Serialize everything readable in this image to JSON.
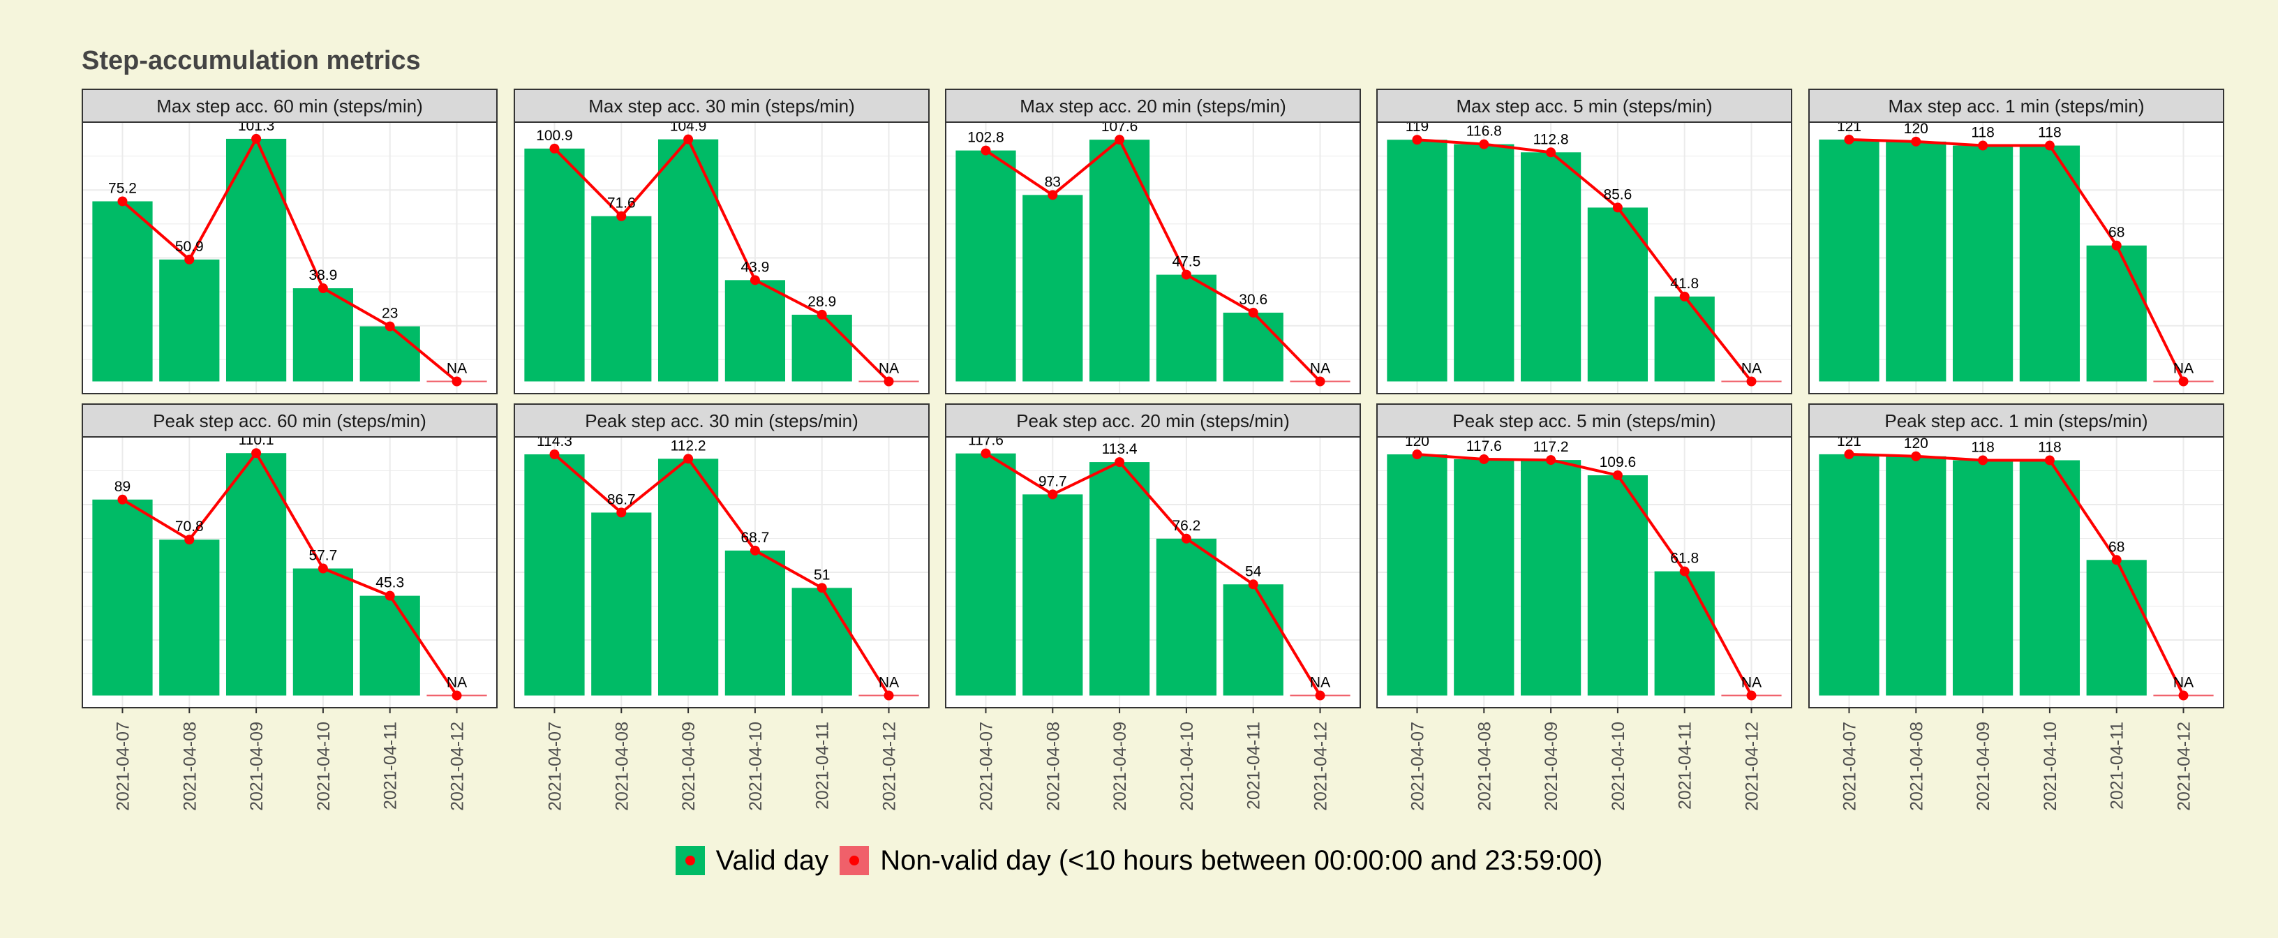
{
  "page": {
    "title": "Step-accumulation metrics"
  },
  "colors": {
    "valid": "#00bb66",
    "non_valid": "#f0606a",
    "line": "#ff0000",
    "strip_bg": "#d9d9d9",
    "grid": "#ebebeb"
  },
  "chart_data": {
    "type": "bar",
    "facet_layout": "2 rows x 5 columns",
    "categories": [
      "2021-04-07",
      "2021-04-08",
      "2021-04-09",
      "2021-04-10",
      "2021-04-11",
      "2021-04-12"
    ],
    "legend": {
      "position": "bottom",
      "entries": [
        {
          "label": "Valid day",
          "color": "#00bb66"
        },
        {
          "label": "Non-valid day (<10 hours between 00:00:00 and 23:59:00)",
          "color": "#f0606a"
        }
      ]
    },
    "panels": [
      {
        "title": "Max step acc. 60 min (steps/min)",
        "values": [
          75.2,
          50.9,
          101.3,
          38.9,
          23,
          null
        ],
        "ylim": [
          0,
          106
        ],
        "validity": [
          "valid",
          "valid",
          "valid",
          "valid",
          "valid",
          "non-valid"
        ]
      },
      {
        "title": "Max step acc. 30 min (steps/min)",
        "values": [
          100.9,
          71.6,
          104.9,
          43.9,
          28.9,
          null
        ],
        "ylim": [
          0,
          110
        ],
        "validity": [
          "valid",
          "valid",
          "valid",
          "valid",
          "valid",
          "non-valid"
        ]
      },
      {
        "title": "Max step acc. 20 min (steps/min)",
        "values": [
          102.8,
          83,
          107.6,
          47.5,
          30.6,
          null
        ],
        "ylim": [
          0,
          113
        ],
        "validity": [
          "valid",
          "valid",
          "valid",
          "valid",
          "valid",
          "non-valid"
        ]
      },
      {
        "title": "Max step acc. 5 min (steps/min)",
        "values": [
          119,
          116.8,
          112.8,
          85.6,
          41.8,
          null
        ],
        "ylim": [
          0,
          125
        ],
        "validity": [
          "valid",
          "valid",
          "valid",
          "valid",
          "valid",
          "non-valid"
        ]
      },
      {
        "title": "Max step acc. 1 min (steps/min)",
        "values": [
          121,
          120,
          118,
          118,
          68,
          null
        ],
        "ylim": [
          0,
          127
        ],
        "validity": [
          "valid",
          "valid",
          "valid",
          "valid",
          "valid",
          "non-valid"
        ]
      },
      {
        "title": "Peak step acc. 60 min (steps/min)",
        "values": [
          89,
          70.8,
          110.1,
          57.7,
          45.3,
          null
        ],
        "ylim": [
          0,
          115
        ],
        "validity": [
          "valid",
          "valid",
          "valid",
          "valid",
          "valid",
          "non-valid"
        ]
      },
      {
        "title": "Peak step acc. 30 min (steps/min)",
        "values": [
          114.3,
          86.7,
          112.2,
          68.7,
          51,
          null
        ],
        "ylim": [
          0,
          120
        ],
        "validity": [
          "valid",
          "valid",
          "valid",
          "valid",
          "valid",
          "non-valid"
        ]
      },
      {
        "title": "Peak step acc. 20 min (steps/min)",
        "values": [
          117.6,
          97.7,
          113.4,
          76.2,
          54,
          null
        ],
        "ylim": [
          0,
          123
        ],
        "validity": [
          "valid",
          "valid",
          "valid",
          "valid",
          "valid",
          "non-valid"
        ]
      },
      {
        "title": "Peak step acc. 5 min (steps/min)",
        "values": [
          120,
          117.6,
          117.2,
          109.6,
          61.8,
          null
        ],
        "ylim": [
          0,
          126
        ],
        "validity": [
          "valid",
          "valid",
          "valid",
          "valid",
          "valid",
          "non-valid"
        ]
      },
      {
        "title": "Peak step acc. 1 min (steps/min)",
        "values": [
          121,
          120,
          118,
          118,
          68,
          null
        ],
        "ylim": [
          0,
          127
        ],
        "validity": [
          "valid",
          "valid",
          "valid",
          "valid",
          "valid",
          "non-valid"
        ]
      }
    ],
    "na_label": "NA",
    "grid": true
  }
}
